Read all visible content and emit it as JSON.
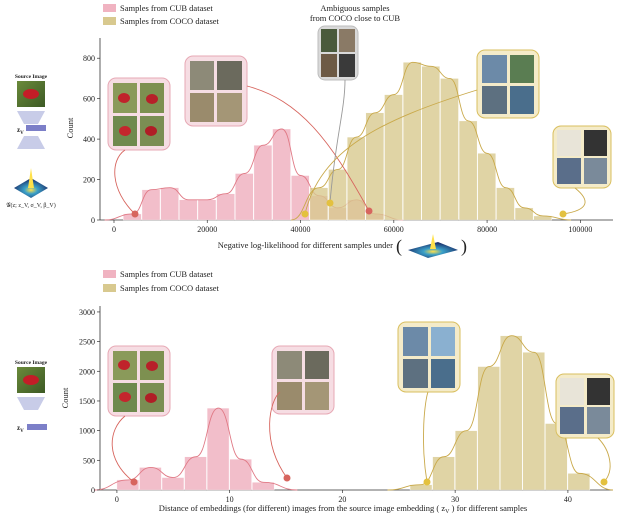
{
  "colors": {
    "cub": "#f0b3c1",
    "coco": "#d8c98f",
    "cub_line": "#e07a86",
    "coco_line": "#c9a94a",
    "cub_dot": "#d7655e",
    "coco_dot": "#e3c13f"
  },
  "annotation": {
    "line1": "Ambiguous samples",
    "line2": "from COCO close to CUB"
  },
  "side_panel": {
    "title": "Source Image",
    "z_label": "z",
    "z_sub": "V",
    "formula": "𝒢(z; z_V, σ_V, β_V)"
  },
  "chart_data": [
    {
      "type": "bar",
      "legend_position": "top-left",
      "legend": [
        "Samples from CUB dataset",
        "Samples from COCO dataset"
      ],
      "xlabel": "Negative log-likelihood for different samples under",
      "ylabel": "Count",
      "xlim": [
        -3000,
        107000
      ],
      "ylim": [
        0,
        900
      ],
      "xticks": [
        0,
        20000,
        40000,
        60000,
        80000,
        100000
      ],
      "xtick_labels": [
        "0",
        "20000",
        "40000",
        "60000",
        "80000",
        "100000"
      ],
      "yticks": [
        0,
        200,
        400,
        600,
        800
      ],
      "bin_width": 4000,
      "series": [
        {
          "name": "Samples from CUB dataset",
          "bin_starts": [
            2000,
            6000,
            10000,
            14000,
            18000,
            22000,
            26000,
            30000,
            34000,
            38000,
            42000,
            46000,
            50000,
            54000
          ],
          "values": [
            30,
            150,
            160,
            100,
            100,
            130,
            230,
            370,
            450,
            220,
            120,
            60,
            100,
            30
          ]
        },
        {
          "name": "Samples from COCO dataset",
          "bin_starts": [
            42000,
            46000,
            50000,
            54000,
            58000,
            62000,
            66000,
            70000,
            74000,
            78000,
            82000,
            86000,
            90000
          ],
          "values": [
            160,
            250,
            410,
            530,
            620,
            780,
            760,
            700,
            490,
            330,
            160,
            60,
            20
          ]
        }
      ]
    },
    {
      "type": "bar",
      "legend_position": "top-left",
      "legend": [
        "Samples from CUB dataset",
        "Samples from COCO dataset"
      ],
      "xlabel": "Distance of embeddings (for different) images from the source image embedding ( z",
      "xlabel_sub": "V",
      "xlabel_tail": " ) for different samples",
      "ylabel": "Count",
      "xlim": [
        -1.5,
        44
      ],
      "ylim": [
        0,
        3100
      ],
      "xticks": [
        0,
        10,
        20,
        30,
        40
      ],
      "xtick_labels": [
        "0",
        "10",
        "20",
        "30",
        "40"
      ],
      "yticks": [
        0,
        500,
        1000,
        1500,
        2000,
        2500,
        3000
      ],
      "bin_width": 2,
      "series": [
        {
          "name": "Samples from CUB dataset",
          "bin_starts": [
            0,
            2,
            4,
            6,
            8,
            10,
            12
          ],
          "values": [
            170,
            380,
            210,
            560,
            1380,
            520,
            130
          ]
        },
        {
          "name": "Samples from COCO dataset",
          "bin_starts": [
            26,
            28,
            30,
            32,
            34,
            36,
            38,
            40
          ],
          "values": [
            90,
            560,
            1000,
            2080,
            2600,
            2320,
            1120,
            280
          ]
        }
      ]
    }
  ]
}
